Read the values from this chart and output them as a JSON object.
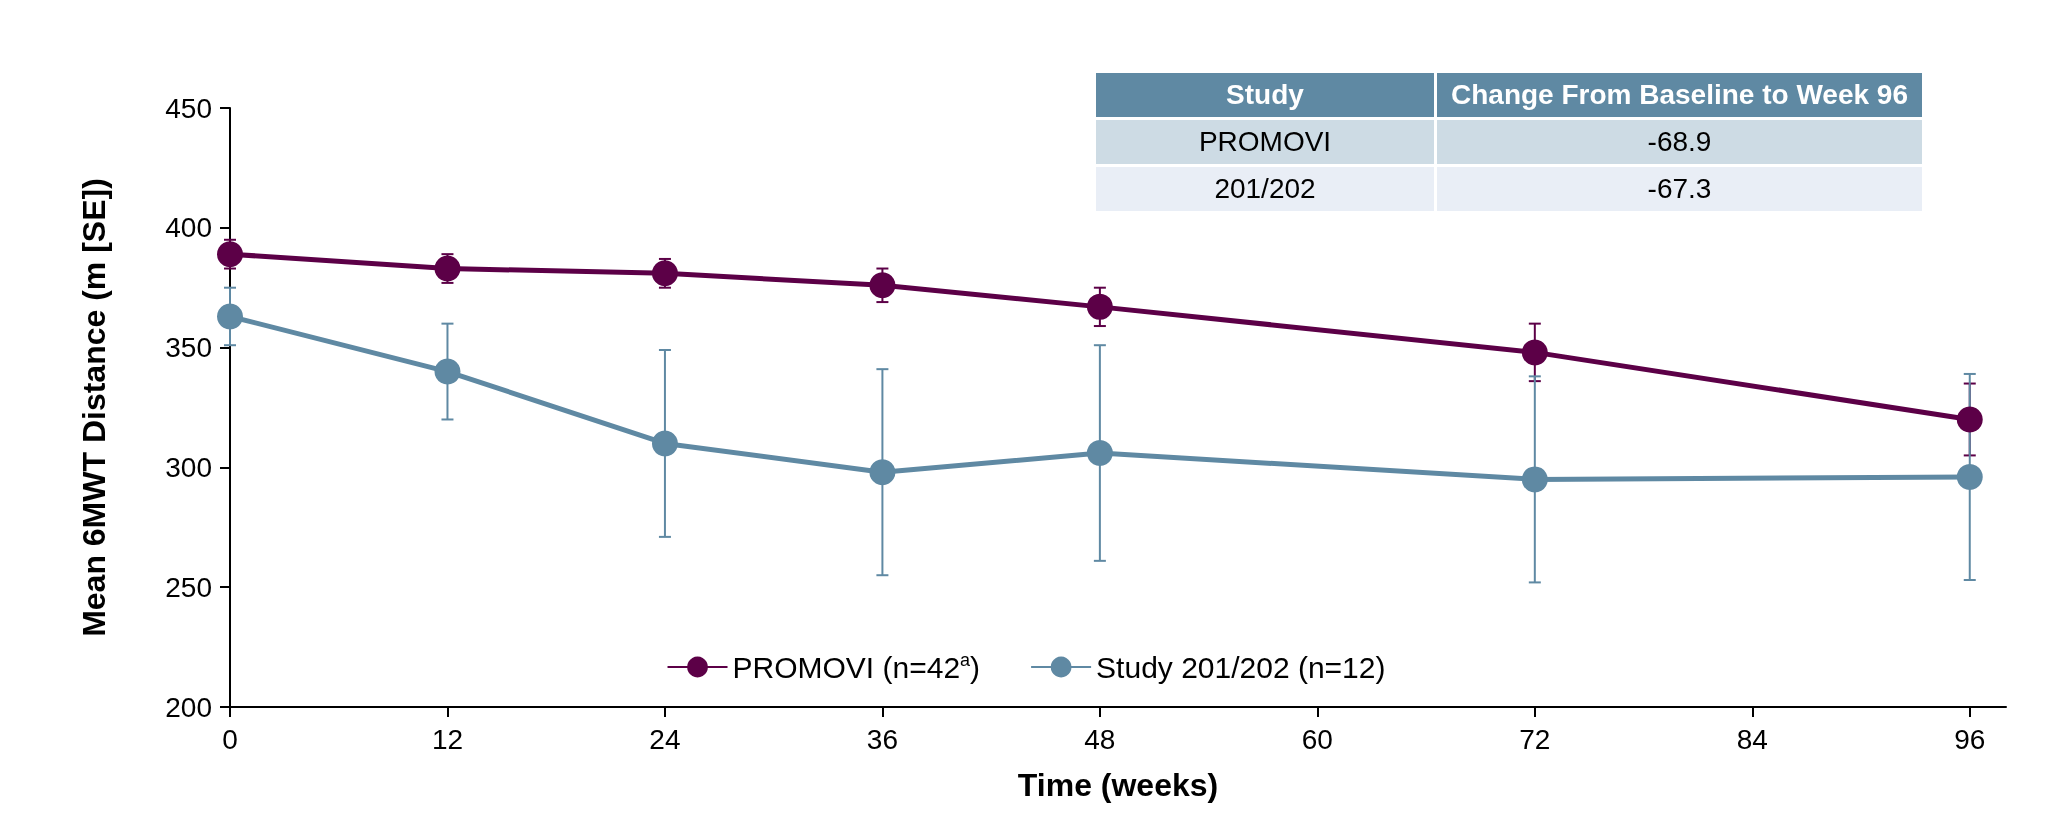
{
  "chart_data": {
    "type": "line",
    "xlabel": "Time (weeks)",
    "ylabel": "Mean 6MWT Distance (m [SE])",
    "x": [
      0,
      12,
      24,
      36,
      48,
      72,
      96
    ],
    "series": [
      {
        "name": "PROMOVI (n=42$^{a}$)",
        "color": "#5c0047",
        "values": [
          389,
          383,
          381,
          376,
          367,
          348,
          320
        ],
        "errors": [
          6,
          6,
          6,
          7,
          8,
          12,
          15
        ]
      },
      {
        "name": "Study 201/202 (n=12)",
        "color": "#5f89a3",
        "values": [
          363,
          340,
          310,
          298,
          306,
          295,
          296
        ],
        "errors": [
          12,
          20,
          39,
          43,
          45,
          43,
          43
        ]
      }
    ],
    "xlim": [
      0,
      98
    ],
    "xticks": [
      0,
      12,
      24,
      36,
      48,
      60,
      72,
      84,
      96
    ],
    "ylim": [
      200,
      450
    ],
    "yticks": [
      200,
      250,
      300,
      350,
      400,
      450
    ],
    "grid": false,
    "legend": "bottom",
    "marker": "circle",
    "line_style": "solid",
    "annotations": [
      "Study",
      "Change From Baseline to Week 96",
      "PROMOVI",
      "-68.9",
      "201/202",
      "-67.3"
    ]
  }
}
